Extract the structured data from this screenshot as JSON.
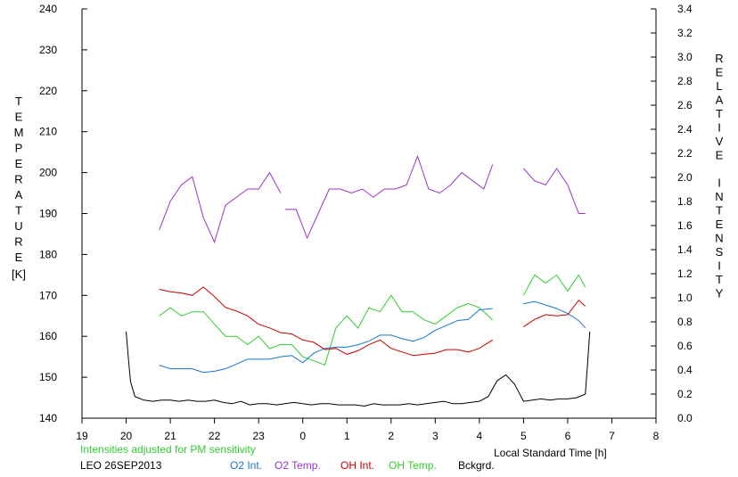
{
  "chart_data": {
    "type": "line",
    "xlabel": "Local Standard Time [h]",
    "ylabel_left": "TEMPERATURE [K]",
    "ylabel_right": "RELATIVE INTENSITY",
    "x_ticks": [
      "19",
      "20",
      "21",
      "22",
      "23",
      "0",
      "1",
      "2",
      "3",
      "4",
      "5",
      "6",
      "7",
      "8"
    ],
    "x_range": [
      19,
      32
    ],
    "ylim_left": [
      140,
      240
    ],
    "yticks_left": [
      "140",
      "150",
      "160",
      "170",
      "180",
      "190",
      "200",
      "210",
      "220",
      "230",
      "240"
    ],
    "ylim_right": [
      0,
      3.4
    ],
    "yticks_right": [
      "0.0",
      "0.2",
      "0.4",
      "0.6",
      "0.8",
      "1.0",
      "1.2",
      "1.4",
      "1.6",
      "1.8",
      "2.0",
      "2.2",
      "2.4",
      "2.6",
      "2.8",
      "3.0",
      "3.2",
      "3.4"
    ],
    "annotation": "Intensities adjusted for PM sensitivity",
    "station_label": "LEO 26SEP2013",
    "legend": [
      "O2 Int.",
      "O2 Temp.",
      "OH Int.",
      "OH Temp.",
      "Bckgrd."
    ],
    "series": [
      {
        "name": "O2 Temp.",
        "axis": "left",
        "color": "#9933cc",
        "segments": [
          {
            "x": [
              20.75,
              21.0,
              21.25,
              21.5,
              21.75,
              22.0,
              22.25,
              22.5,
              22.75,
              23.0,
              23.25,
              23.5
            ],
            "y": [
              186,
              193,
              197,
              199,
              189,
              183,
              192,
              194,
              196,
              196,
              200,
              195
            ]
          },
          {
            "x": [
              23.6,
              23.85,
              24.1,
              24.35,
              24.6,
              24.85,
              25.1,
              25.35,
              25.6,
              25.85,
              26.1,
              26.35,
              26.6,
              26.85,
              27.1,
              27.35,
              27.6,
              27.85,
              28.1,
              28.3
            ],
            "y": [
              191,
              191,
              184,
              190,
              196,
              196,
              195,
              196,
              194,
              196,
              196,
              197,
              204,
              196,
              195,
              197,
              200,
              198,
              196,
              202
            ]
          },
          {
            "x": [
              29.0,
              29.25,
              29.5,
              29.75,
              30.0,
              30.25,
              30.4
            ],
            "y": [
              201,
              198,
              197,
              201,
              197,
              190,
              190
            ]
          }
        ]
      },
      {
        "name": "OH Temp.",
        "axis": "left",
        "color": "#33cc33",
        "segments": [
          {
            "x": [
              20.75,
              21.0,
              21.25,
              21.5,
              21.75,
              22.0,
              22.25,
              22.5,
              22.75,
              23.0,
              23.25,
              23.5,
              23.75,
              24.0,
              24.25,
              24.5,
              24.75,
              25.0,
              25.25,
              25.5,
              25.75,
              26.0,
              26.25,
              26.5,
              26.75,
              27.0,
              27.25,
              27.5,
              27.75,
              28.0,
              28.3
            ],
            "y": [
              165,
              167,
              165,
              166,
              166,
              163,
              160,
              160,
              158,
              160,
              157,
              158,
              158,
              155,
              154,
              153,
              162,
              165,
              162,
              167,
              166,
              170,
              166,
              166,
              164,
              163,
              165,
              167,
              168,
              167,
              164
            ]
          },
          {
            "x": [
              29.0,
              29.25,
              29.5,
              29.75,
              30.0,
              30.25,
              30.4
            ],
            "y": [
              170,
              175,
              173,
              175,
              171,
              175,
              172
            ]
          }
        ]
      },
      {
        "name": "O2 Int.",
        "axis": "right",
        "color": "#1a75d1",
        "segments": [
          {
            "x": [
              20.75,
              21.0,
              21.25,
              21.5,
              21.75,
              22.0,
              22.25,
              22.5,
              22.75,
              23.0,
              23.25,
              23.5,
              23.75,
              24.0,
              24.25,
              24.5,
              24.75,
              25.0,
              25.25,
              25.5,
              25.75,
              26.0,
              26.25,
              26.5,
              26.75,
              27.0,
              27.25,
              27.5,
              27.75,
              28.0,
              28.3
            ],
            "y": [
              0.44,
              0.41,
              0.41,
              0.41,
              0.38,
              0.39,
              0.41,
              0.45,
              0.49,
              0.49,
              0.49,
              0.51,
              0.52,
              0.46,
              0.54,
              0.58,
              0.59,
              0.59,
              0.61,
              0.64,
              0.69,
              0.69,
              0.66,
              0.64,
              0.67,
              0.73,
              0.77,
              0.81,
              0.82,
              0.9,
              0.91
            ]
          },
          {
            "x": [
              29.0,
              29.25,
              29.5,
              29.75,
              30.0,
              30.25,
              30.4
            ],
            "y": [
              0.95,
              0.97,
              0.94,
              0.91,
              0.87,
              0.81,
              0.75
            ]
          }
        ]
      },
      {
        "name": "OH Int.",
        "axis": "right",
        "color": "#cc0000",
        "segments": [
          {
            "x": [
              20.75,
              21.0,
              21.25,
              21.5,
              21.75,
              22.0,
              22.25,
              22.5,
              22.75,
              23.0,
              23.25,
              23.5,
              23.75,
              24.0,
              24.25,
              24.5,
              24.75,
              25.0,
              25.25,
              25.5,
              25.75,
              26.0,
              26.25,
              26.5,
              26.75,
              27.0,
              27.25,
              27.5,
              27.75,
              28.0,
              28.3
            ],
            "y": [
              1.07,
              1.05,
              1.04,
              1.02,
              1.09,
              1.01,
              0.92,
              0.89,
              0.85,
              0.78,
              0.75,
              0.71,
              0.7,
              0.65,
              0.63,
              0.57,
              0.58,
              0.53,
              0.56,
              0.61,
              0.65,
              0.58,
              0.55,
              0.52,
              0.53,
              0.54,
              0.57,
              0.57,
              0.55,
              0.58,
              0.65
            ]
          },
          {
            "x": [
              29.0,
              29.25,
              29.5,
              29.75,
              30.0,
              30.25,
              30.4
            ],
            "y": [
              0.76,
              0.82,
              0.86,
              0.85,
              0.86,
              0.98,
              0.93
            ]
          }
        ]
      },
      {
        "name": "Bckgrd.",
        "axis": "right",
        "color": "#000000",
        "segments": [
          {
            "x": [
              20.0,
              20.05,
              20.1,
              20.2,
              20.4,
              20.6,
              20.8,
              21.0,
              21.2,
              21.4,
              21.6,
              21.8,
              22.0,
              22.2,
              22.4,
              22.6,
              22.8,
              23.0,
              23.2,
              23.4,
              23.6,
              23.8,
              24.0,
              24.2,
              24.4,
              24.6,
              24.8,
              25.0,
              25.2,
              25.4,
              25.6,
              25.8,
              26.0,
              26.2,
              26.4,
              26.6,
              26.8,
              27.0,
              27.2,
              27.4,
              27.6,
              27.8,
              28.0,
              28.2,
              28.4,
              28.6,
              28.8,
              29.0,
              29.2,
              29.4,
              29.6,
              29.8,
              30.0,
              30.2,
              30.4,
              30.45,
              30.5
            ],
            "y": [
              0.72,
              0.5,
              0.3,
              0.18,
              0.15,
              0.14,
              0.15,
              0.15,
              0.14,
              0.15,
              0.14,
              0.14,
              0.15,
              0.13,
              0.12,
              0.14,
              0.11,
              0.12,
              0.12,
              0.11,
              0.12,
              0.13,
              0.12,
              0.11,
              0.12,
              0.12,
              0.11,
              0.11,
              0.11,
              0.1,
              0.12,
              0.11,
              0.11,
              0.11,
              0.12,
              0.11,
              0.12,
              0.13,
              0.14,
              0.12,
              0.12,
              0.13,
              0.14,
              0.18,
              0.31,
              0.36,
              0.28,
              0.14,
              0.15,
              0.16,
              0.15,
              0.16,
              0.16,
              0.17,
              0.2,
              0.45,
              0.72
            ]
          }
        ]
      }
    ]
  }
}
